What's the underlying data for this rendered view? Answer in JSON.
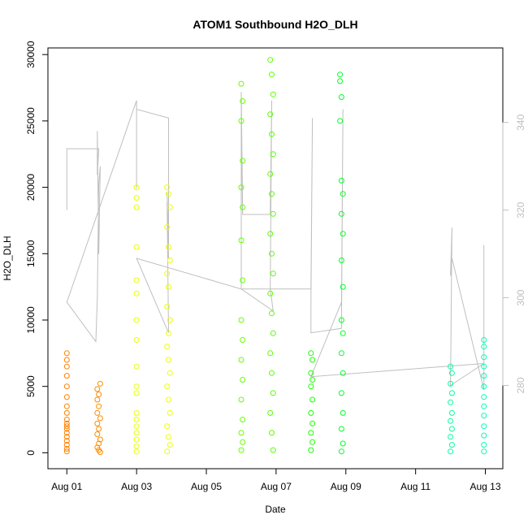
{
  "chart_data": {
    "type": "scatter",
    "title": "ATOM1 Southbound H2O_DLH",
    "xlabel": "Date",
    "ylabel": "H2O_DLH",
    "xlim": [
      "2016-07-31T11:00",
      "2016-08-13T12:00"
    ],
    "ylim": [
      -1200,
      30500
    ],
    "x_ticks": [
      "Aug 01",
      "Aug 03",
      "Aug 05",
      "Aug 07",
      "Aug 09",
      "Aug 11",
      "Aug 13"
    ],
    "y_ticks": [
      0,
      5000,
      10000,
      15000,
      20000,
      25000,
      30000
    ],
    "right_axis": {
      "label": "",
      "ticks": [
        280,
        300,
        320,
        340
      ],
      "ylim": [
        261,
        357
      ],
      "color": "#bfbfbf"
    },
    "grid": false,
    "legend": "none",
    "colors": {
      "frame": "#000000",
      "right_axis": "#bfbfbf",
      "secondary_line": "#bfbfbf"
    },
    "series": [
      {
        "color": "#ff8000",
        "points": [
          {
            "x": "2016-08-01T00:00",
            "y": 7500
          },
          {
            "x": "2016-08-01T00:00",
            "y": 7000
          },
          {
            "x": "2016-08-01T00:00",
            "y": 6500
          },
          {
            "x": "2016-08-01T00:00",
            "y": 5800
          },
          {
            "x": "2016-08-01T00:00",
            "y": 5000
          },
          {
            "x": "2016-08-01T00:00",
            "y": 4200
          },
          {
            "x": "2016-08-01T00:00",
            "y": 3500
          },
          {
            "x": "2016-08-01T00:00",
            "y": 3000
          },
          {
            "x": "2016-08-01T00:00",
            "y": 2500
          },
          {
            "x": "2016-08-01T00:00",
            "y": 2200
          },
          {
            "x": "2016-08-01T00:00",
            "y": 2000
          },
          {
            "x": "2016-08-01T00:00",
            "y": 1800
          },
          {
            "x": "2016-08-01T00:00",
            "y": 1500
          },
          {
            "x": "2016-08-01T00:00",
            "y": 1200
          },
          {
            "x": "2016-08-01T00:00",
            "y": 900
          },
          {
            "x": "2016-08-01T00:00",
            "y": 600
          },
          {
            "x": "2016-08-01T00:00",
            "y": 300
          },
          {
            "x": "2016-08-01T00:00",
            "y": 100
          }
        ]
      },
      {
        "color": "#ff8c00",
        "points": [
          {
            "x": "2016-08-01T21:00",
            "y": 4800
          },
          {
            "x": "2016-08-01T22:00",
            "y": 4400
          },
          {
            "x": "2016-08-01T23:00",
            "y": 5200
          },
          {
            "x": "2016-08-01T21:00",
            "y": 4000
          },
          {
            "x": "2016-08-01T22:00",
            "y": 3500
          },
          {
            "x": "2016-08-01T21:00",
            "y": 3000
          },
          {
            "x": "2016-08-01T23:00",
            "y": 2600
          },
          {
            "x": "2016-08-01T21:00",
            "y": 2200
          },
          {
            "x": "2016-08-01T22:00",
            "y": 1800
          },
          {
            "x": "2016-08-01T21:00",
            "y": 1400
          },
          {
            "x": "2016-08-01T23:00",
            "y": 1000
          },
          {
            "x": "2016-08-01T22:00",
            "y": 700
          },
          {
            "x": "2016-08-01T21:00",
            "y": 400
          },
          {
            "x": "2016-08-01T22:00",
            "y": 200
          },
          {
            "x": "2016-08-01T23:00",
            "y": 50
          }
        ]
      },
      {
        "color": "#e6ff00",
        "points": [
          {
            "x": "2016-08-03T00:00",
            "y": 20000
          },
          {
            "x": "2016-08-03T00:00",
            "y": 19200
          },
          {
            "x": "2016-08-03T00:00",
            "y": 18500
          },
          {
            "x": "2016-08-03T00:00",
            "y": 15500
          },
          {
            "x": "2016-08-03T00:00",
            "y": 13000
          },
          {
            "x": "2016-08-03T00:00",
            "y": 12000
          },
          {
            "x": "2016-08-03T00:00",
            "y": 10000
          },
          {
            "x": "2016-08-03T00:00",
            "y": 8500
          },
          {
            "x": "2016-08-03T00:00",
            "y": 6500
          },
          {
            "x": "2016-08-03T00:00",
            "y": 5000
          },
          {
            "x": "2016-08-03T00:00",
            "y": 4500
          },
          {
            "x": "2016-08-03T00:00",
            "y": 3000
          },
          {
            "x": "2016-08-03T00:00",
            "y": 2500
          },
          {
            "x": "2016-08-03T00:00",
            "y": 2000
          },
          {
            "x": "2016-08-03T00:00",
            "y": 1500
          },
          {
            "x": "2016-08-03T00:00",
            "y": 1000
          },
          {
            "x": "2016-08-03T00:00",
            "y": 500
          },
          {
            "x": "2016-08-03T00:00",
            "y": 100
          }
        ]
      },
      {
        "color": "#ebff00",
        "points": [
          {
            "x": "2016-08-03T21:00",
            "y": 20000
          },
          {
            "x": "2016-08-03T22:00",
            "y": 19500
          },
          {
            "x": "2016-08-03T23:00",
            "y": 18500
          },
          {
            "x": "2016-08-03T21:00",
            "y": 17000
          },
          {
            "x": "2016-08-03T22:00",
            "y": 15500
          },
          {
            "x": "2016-08-03T23:00",
            "y": 14500
          },
          {
            "x": "2016-08-03T21:00",
            "y": 13500
          },
          {
            "x": "2016-08-03T22:00",
            "y": 12500
          },
          {
            "x": "2016-08-03T21:00",
            "y": 11000
          },
          {
            "x": "2016-08-03T23:00",
            "y": 10000
          },
          {
            "x": "2016-08-03T22:00",
            "y": 9000
          },
          {
            "x": "2016-08-03T21:00",
            "y": 8000
          },
          {
            "x": "2016-08-03T22:00",
            "y": 7000
          },
          {
            "x": "2016-08-03T23:00",
            "y": 6000
          },
          {
            "x": "2016-08-03T21:00",
            "y": 5000
          },
          {
            "x": "2016-08-03T22:00",
            "y": 4000
          },
          {
            "x": "2016-08-03T23:00",
            "y": 3000
          },
          {
            "x": "2016-08-03T21:00",
            "y": 2000
          },
          {
            "x": "2016-08-03T22:00",
            "y": 1200
          },
          {
            "x": "2016-08-03T23:00",
            "y": 600
          },
          {
            "x": "2016-08-03T21:00",
            "y": 100
          }
        ]
      },
      {
        "color": "#66ff00",
        "points": [
          {
            "x": "2016-08-06T00:00",
            "y": 27800
          },
          {
            "x": "2016-08-06T01:00",
            "y": 26500
          },
          {
            "x": "2016-08-06T00:00",
            "y": 25000
          },
          {
            "x": "2016-08-06T01:00",
            "y": 22000
          },
          {
            "x": "2016-08-06T00:00",
            "y": 20000
          },
          {
            "x": "2016-08-06T01:00",
            "y": 18500
          },
          {
            "x": "2016-08-06T00:00",
            "y": 16000
          },
          {
            "x": "2016-08-06T01:00",
            "y": 13000
          },
          {
            "x": "2016-08-06T00:00",
            "y": 10000
          },
          {
            "x": "2016-08-06T01:00",
            "y": 8500
          },
          {
            "x": "2016-08-06T00:00",
            "y": 7000
          },
          {
            "x": "2016-08-06T01:00",
            "y": 5500
          },
          {
            "x": "2016-08-06T00:00",
            "y": 4000
          },
          {
            "x": "2016-08-06T01:00",
            "y": 2500
          },
          {
            "x": "2016-08-06T00:00",
            "y": 1500
          },
          {
            "x": "2016-08-06T01:00",
            "y": 800
          },
          {
            "x": "2016-08-06T00:00",
            "y": 200
          }
        ]
      },
      {
        "color": "#5aff00",
        "points": [
          {
            "x": "2016-08-06T20:00",
            "y": 29600
          },
          {
            "x": "2016-08-06T21:00",
            "y": 28500
          },
          {
            "x": "2016-08-06T22:00",
            "y": 27000
          },
          {
            "x": "2016-08-06T20:00",
            "y": 25500
          },
          {
            "x": "2016-08-06T21:00",
            "y": 24000
          },
          {
            "x": "2016-08-06T22:00",
            "y": 22500
          },
          {
            "x": "2016-08-06T20:00",
            "y": 21000
          },
          {
            "x": "2016-08-06T21:00",
            "y": 19500
          },
          {
            "x": "2016-08-06T22:00",
            "y": 18000
          },
          {
            "x": "2016-08-06T20:00",
            "y": 16500
          },
          {
            "x": "2016-08-06T21:00",
            "y": 15000
          },
          {
            "x": "2016-08-06T22:00",
            "y": 13500
          },
          {
            "x": "2016-08-06T20:00",
            "y": 12000
          },
          {
            "x": "2016-08-06T21:00",
            "y": 10500
          },
          {
            "x": "2016-08-06T22:00",
            "y": 9000
          },
          {
            "x": "2016-08-06T20:00",
            "y": 7500
          },
          {
            "x": "2016-08-06T21:00",
            "y": 6000
          },
          {
            "x": "2016-08-06T22:00",
            "y": 4500
          },
          {
            "x": "2016-08-06T20:00",
            "y": 3000
          },
          {
            "x": "2016-08-06T21:00",
            "y": 1500
          },
          {
            "x": "2016-08-06T22:00",
            "y": 200
          }
        ]
      },
      {
        "color": "#1aff00",
        "points": [
          {
            "x": "2016-08-08T00:00",
            "y": 7500
          },
          {
            "x": "2016-08-08T01:00",
            "y": 7000
          },
          {
            "x": "2016-08-08T00:00",
            "y": 6000
          },
          {
            "x": "2016-08-08T01:00",
            "y": 5500
          },
          {
            "x": "2016-08-08T00:00",
            "y": 5000
          },
          {
            "x": "2016-08-08T01:00",
            "y": 4000
          },
          {
            "x": "2016-08-08T00:00",
            "y": 3000
          },
          {
            "x": "2016-08-08T01:00",
            "y": 2200
          },
          {
            "x": "2016-08-08T00:00",
            "y": 1500
          },
          {
            "x": "2016-08-08T01:00",
            "y": 800
          },
          {
            "x": "2016-08-08T00:00",
            "y": 200
          }
        ]
      },
      {
        "color": "#00ff26",
        "points": [
          {
            "x": "2016-08-08T20:00",
            "y": 28500
          },
          {
            "x": "2016-08-08T20:00",
            "y": 28000
          },
          {
            "x": "2016-08-08T21:00",
            "y": 26800
          },
          {
            "x": "2016-08-08T20:00",
            "y": 25000
          },
          {
            "x": "2016-08-08T21:00",
            "y": 20500
          },
          {
            "x": "2016-08-08T22:00",
            "y": 19500
          },
          {
            "x": "2016-08-08T21:00",
            "y": 18000
          },
          {
            "x": "2016-08-08T22:00",
            "y": 16500
          },
          {
            "x": "2016-08-08T21:00",
            "y": 14500
          },
          {
            "x": "2016-08-08T22:00",
            "y": 12500
          },
          {
            "x": "2016-08-08T21:00",
            "y": 10000
          },
          {
            "x": "2016-08-08T22:00",
            "y": 9000
          },
          {
            "x": "2016-08-08T21:00",
            "y": 7500
          },
          {
            "x": "2016-08-08T22:00",
            "y": 6000
          },
          {
            "x": "2016-08-08T21:00",
            "y": 4500
          },
          {
            "x": "2016-08-08T22:00",
            "y": 3000
          },
          {
            "x": "2016-08-08T21:00",
            "y": 1800
          },
          {
            "x": "2016-08-08T22:00",
            "y": 700
          },
          {
            "x": "2016-08-08T21:00",
            "y": 100
          }
        ]
      },
      {
        "color": "#00ffa0",
        "points": [
          {
            "x": "2016-08-12T00:00",
            "y": 6500
          },
          {
            "x": "2016-08-12T01:00",
            "y": 6000
          },
          {
            "x": "2016-08-12T00:00",
            "y": 5200
          },
          {
            "x": "2016-08-12T01:00",
            "y": 4500
          },
          {
            "x": "2016-08-12T00:00",
            "y": 3800
          },
          {
            "x": "2016-08-12T01:00",
            "y": 3000
          },
          {
            "x": "2016-08-12T00:00",
            "y": 2400
          },
          {
            "x": "2016-08-12T01:00",
            "y": 1800
          },
          {
            "x": "2016-08-12T00:00",
            "y": 1200
          },
          {
            "x": "2016-08-12T01:00",
            "y": 600
          },
          {
            "x": "2016-08-12T00:00",
            "y": 100
          }
        ]
      },
      {
        "color": "#00ffb3",
        "points": [
          {
            "x": "2016-08-12T23:00",
            "y": 8500
          },
          {
            "x": "2016-08-12T23:00",
            "y": 8000
          },
          {
            "x": "2016-08-12T23:00",
            "y": 7200
          },
          {
            "x": "2016-08-12T23:00",
            "y": 6500
          },
          {
            "x": "2016-08-12T23:00",
            "y": 5800
          },
          {
            "x": "2016-08-12T23:00",
            "y": 5000
          },
          {
            "x": "2016-08-12T23:00",
            "y": 4200
          },
          {
            "x": "2016-08-12T23:00",
            "y": 3500
          },
          {
            "x": "2016-08-12T23:00",
            "y": 2800
          },
          {
            "x": "2016-08-12T23:00",
            "y": 2000
          },
          {
            "x": "2016-08-12T23:00",
            "y": 1300
          },
          {
            "x": "2016-08-12T23:00",
            "y": 600
          },
          {
            "x": "2016-08-12T23:00",
            "y": 100
          }
        ]
      }
    ],
    "secondary_series": {
      "axis": "right",
      "color": "#bfbfbf",
      "points": [
        {
          "x": "2016-08-01T00:00",
          "y": 333
        },
        {
          "x": "2016-08-01T00:00",
          "y": 320
        },
        {
          "x": "2016-08-01T00:00",
          "y": 334
        },
        {
          "x": "2016-08-01T22:00",
          "y": 334
        },
        {
          "x": "2016-08-01T21:00",
          "y": 328
        },
        {
          "x": "2016-08-01T21:00",
          "y": 338
        },
        {
          "x": "2016-08-01T22:00",
          "y": 310
        },
        {
          "x": "2016-08-01T23:00",
          "y": 330
        },
        {
          "x": "2016-08-01T22:00",
          "y": 326
        },
        {
          "x": "2016-08-01T21:00",
          "y": 300
        },
        {
          "x": "2016-08-01T20:00",
          "y": 290
        },
        {
          "x": "2016-08-01T00:00",
          "y": 299
        },
        {
          "x": "2016-08-03T00:00",
          "y": 345
        },
        {
          "x": "2016-08-03T00:00",
          "y": 325
        },
        {
          "x": "2016-08-03T00:00",
          "y": 343
        },
        {
          "x": "2016-08-03T22:00",
          "y": 341
        },
        {
          "x": "2016-08-03T22:00",
          "y": 312
        },
        {
          "x": "2016-08-03T21:00",
          "y": 324
        },
        {
          "x": "2016-08-03T22:00",
          "y": 309
        },
        {
          "x": "2016-08-03T21:00",
          "y": 322
        },
        {
          "x": "2016-08-03T22:00",
          "y": 292
        },
        {
          "x": "2016-08-03T00:00",
          "y": 309
        },
        {
          "x": "2016-08-06T00:00",
          "y": 302
        },
        {
          "x": "2016-08-06T00:00",
          "y": 347
        },
        {
          "x": "2016-08-06T01:00",
          "y": 320
        },
        {
          "x": "2016-08-06T00:00",
          "y": 339
        },
        {
          "x": "2016-08-06T01:00",
          "y": 319
        },
        {
          "x": "2016-08-06T20:00",
          "y": 319
        },
        {
          "x": "2016-08-06T21:00",
          "y": 345
        },
        {
          "x": "2016-08-06T20:00",
          "y": 302
        },
        {
          "x": "2016-08-06T22:00",
          "y": 297
        },
        {
          "x": "2016-08-06T00:00",
          "y": 302
        },
        {
          "x": "2016-08-08T00:00",
          "y": 302
        },
        {
          "x": "2016-08-08T01:00",
          "y": 341
        },
        {
          "x": "2016-08-08T00:00",
          "y": 299
        },
        {
          "x": "2016-08-08T00:00",
          "y": 292
        },
        {
          "x": "2016-08-08T21:00",
          "y": 293
        },
        {
          "x": "2016-08-08T22:00",
          "y": 343
        },
        {
          "x": "2016-08-08T21:00",
          "y": 298
        },
        {
          "x": "2016-08-08T21:00",
          "y": 299
        },
        {
          "x": "2016-08-08T00:00",
          "y": 282
        },
        {
          "x": "2016-08-12T23:00",
          "y": 285
        },
        {
          "x": "2016-08-12T00:00",
          "y": 280
        },
        {
          "x": "2016-08-12T01:00",
          "y": 316
        },
        {
          "x": "2016-08-12T00:00",
          "y": 305
        },
        {
          "x": "2016-08-12T01:00",
          "y": 309
        },
        {
          "x": "2016-08-12T23:00",
          "y": 279
        },
        {
          "x": "2016-08-12T23:00",
          "y": 312
        },
        {
          "x": "2016-08-12T23:00",
          "y": 300
        },
        {
          "x": "2016-08-12T23:00",
          "y": 308
        },
        {
          "x": "2016-08-12T23:00",
          "y": 284
        }
      ]
    }
  }
}
